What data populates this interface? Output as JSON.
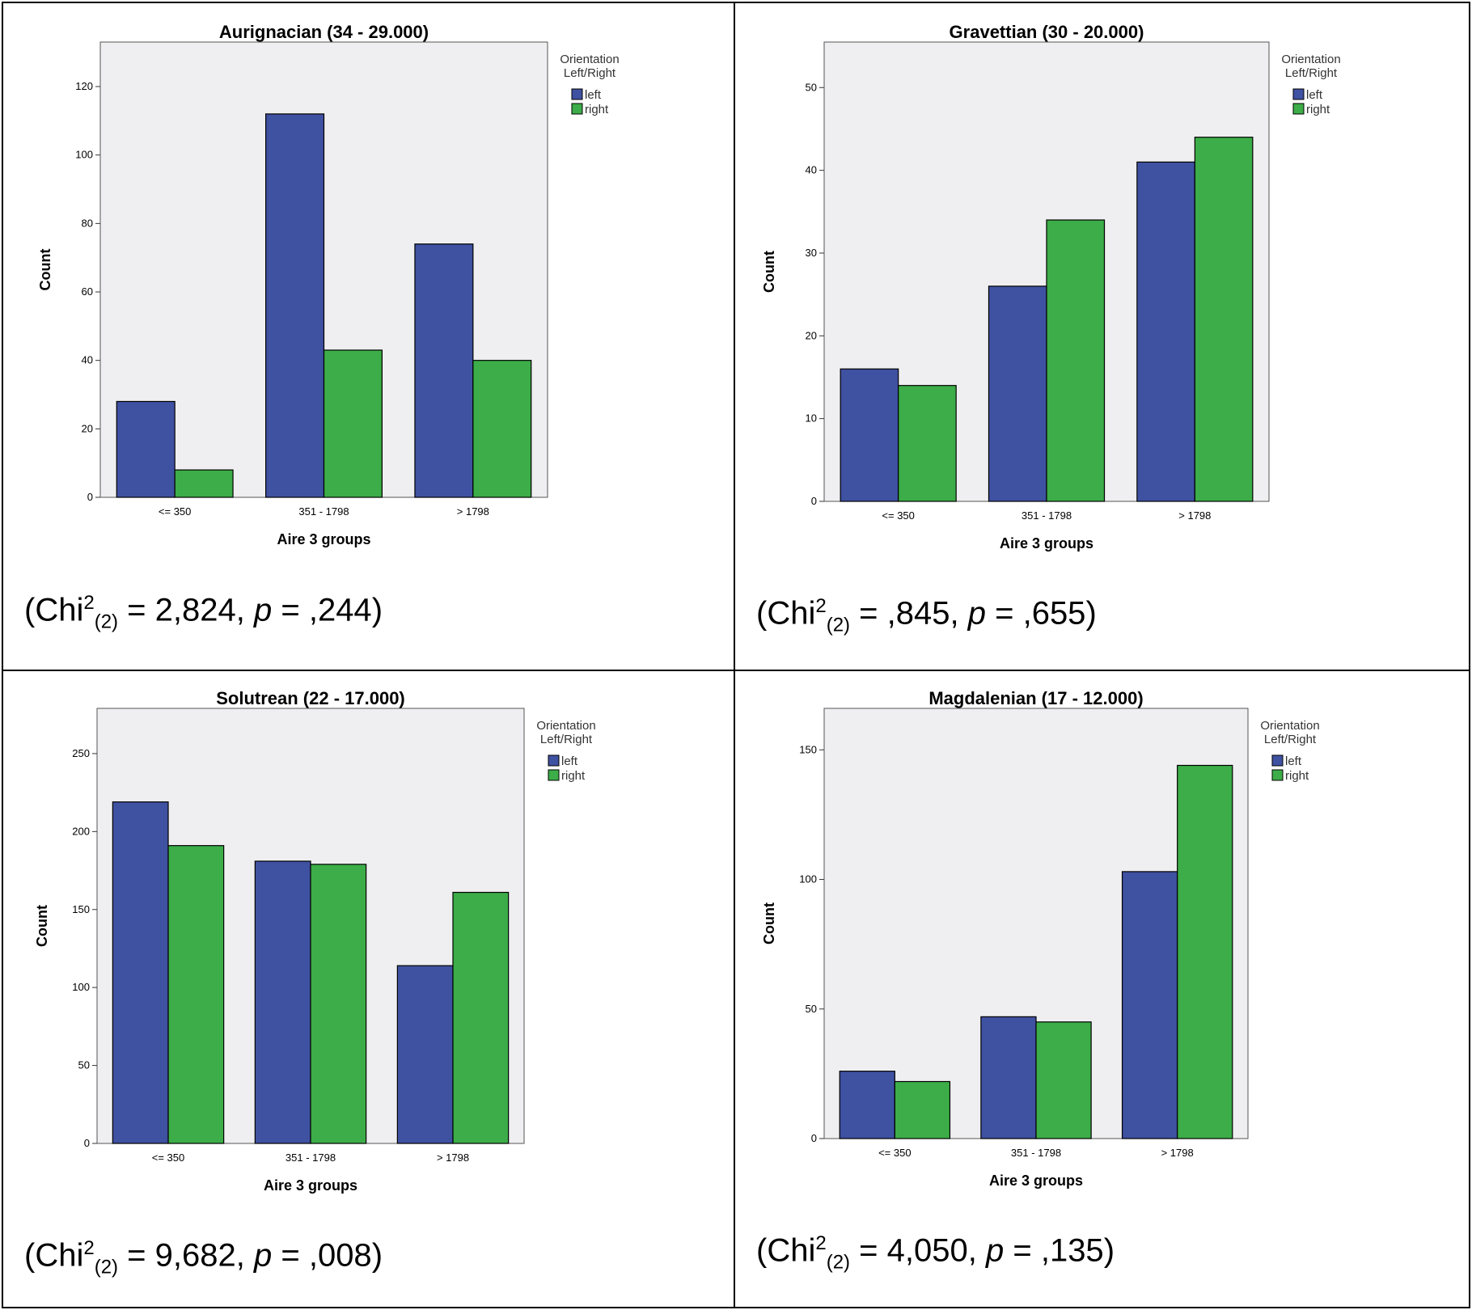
{
  "legend": {
    "title_line1": "Orientation",
    "title_line2": "Left/Right",
    "left_label": "left",
    "right_label": "right"
  },
  "colors": {
    "left": "#3f51a1",
    "right": "#3cad48",
    "plot_bg": "#efeff1"
  },
  "chart_data": [
    {
      "type": "bar",
      "title": "Aurignacian (34 - 29.000)",
      "xlabel": "Aire 3 groups",
      "ylabel": "Count",
      "categories": [
        "<= 350",
        "351 - 1798",
        "> 1798"
      ],
      "series": [
        {
          "name": "left",
          "values": [
            28,
            112,
            74
          ]
        },
        {
          "name": "right",
          "values": [
            8,
            43,
            40
          ]
        }
      ],
      "ylim": [
        0,
        133
      ],
      "yticks": [
        0,
        20,
        40,
        60,
        80,
        100,
        120
      ],
      "grid": false,
      "legend_position": "top-right outside",
      "stat": {
        "chi2": "2,824",
        "df": "(2)",
        "p": ",244"
      }
    },
    {
      "type": "bar",
      "title": "Gravettian (30 - 20.000)",
      "xlabel": "Aire 3 groups",
      "ylabel": "Count",
      "categories": [
        "<= 350",
        "351 - 1798",
        "> 1798"
      ],
      "series": [
        {
          "name": "left",
          "values": [
            16,
            26,
            41
          ]
        },
        {
          "name": "right",
          "values": [
            14,
            34,
            44
          ]
        }
      ],
      "ylim": [
        0,
        55.5
      ],
      "yticks": [
        0,
        10,
        20,
        30,
        40,
        50
      ],
      "grid": false,
      "legend_position": "top-right outside",
      "stat": {
        "chi2": ",845",
        "df": "(2)",
        "p": ",655"
      }
    },
    {
      "type": "bar",
      "title": "Solutrean (22 - 17.000)",
      "xlabel": "Aire 3 groups",
      "ylabel": "Count",
      "categories": [
        "<= 350",
        "351 - 1798",
        "> 1798"
      ],
      "series": [
        {
          "name": "left",
          "values": [
            219,
            181,
            114
          ]
        },
        {
          "name": "right",
          "values": [
            191,
            179,
            161
          ]
        }
      ],
      "ylim": [
        0,
        279
      ],
      "yticks": [
        0,
        50,
        100,
        150,
        200,
        250
      ],
      "grid": false,
      "legend_position": "top-right outside",
      "stat": {
        "chi2": "9,682",
        "df": "(2)",
        "p": ",008"
      }
    },
    {
      "type": "bar",
      "title": "Magdalenian (17 - 12.000)",
      "xlabel": "Aire 3 groups",
      "ylabel": "Count",
      "categories": [
        "<= 350",
        "351 - 1798",
        "> 1798"
      ],
      "series": [
        {
          "name": "left",
          "values": [
            26,
            47,
            103
          ]
        },
        {
          "name": "right",
          "values": [
            22,
            45,
            144
          ]
        }
      ],
      "ylim": [
        0,
        166
      ],
      "yticks": [
        0,
        50,
        100,
        150
      ],
      "grid": false,
      "legend_position": "top-right outside",
      "stat": {
        "chi2": "4,050",
        "df": "(2)",
        "p": ",135"
      }
    }
  ]
}
